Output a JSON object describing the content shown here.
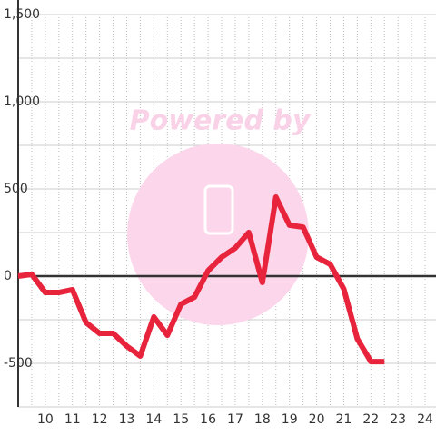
{
  "watermark": "Powered by",
  "chart_data": {
    "type": "line",
    "x": [
      9,
      9.5,
      10,
      10.5,
      11,
      11.5,
      12,
      12.5,
      13,
      13.5,
      14,
      14.5,
      15,
      15.5,
      16,
      16.5,
      17,
      17.5,
      18,
      18.5,
      19,
      19.5,
      20,
      20.5,
      21,
      21.5,
      22,
      22.5
    ],
    "series": [
      {
        "color": "#e8243c",
        "values": [
          0,
          10,
          -94,
          -94,
          -78,
          -266,
          -328,
          -328,
          -401,
          -458,
          -234,
          -339,
          -161,
          -120,
          31,
          109,
          161,
          250,
          -36,
          453,
          292,
          281,
          109,
          68,
          -73,
          -359,
          -490,
          -490
        ]
      }
    ],
    "xlim": [
      9,
      24.4
    ],
    "xticks": [
      10,
      11,
      12,
      13,
      14,
      15,
      16,
      17,
      18,
      19,
      20,
      21,
      22,
      23,
      24
    ],
    "ylim": [
      -750,
      1500
    ],
    "yticks": [
      {
        "value": -500,
        "label": "-500"
      },
      0,
      500,
      {
        "value": 1000,
        "label": "1,000"
      },
      {
        "value": 1500,
        "label": "1,500"
      }
    ],
    "grid": true
  }
}
